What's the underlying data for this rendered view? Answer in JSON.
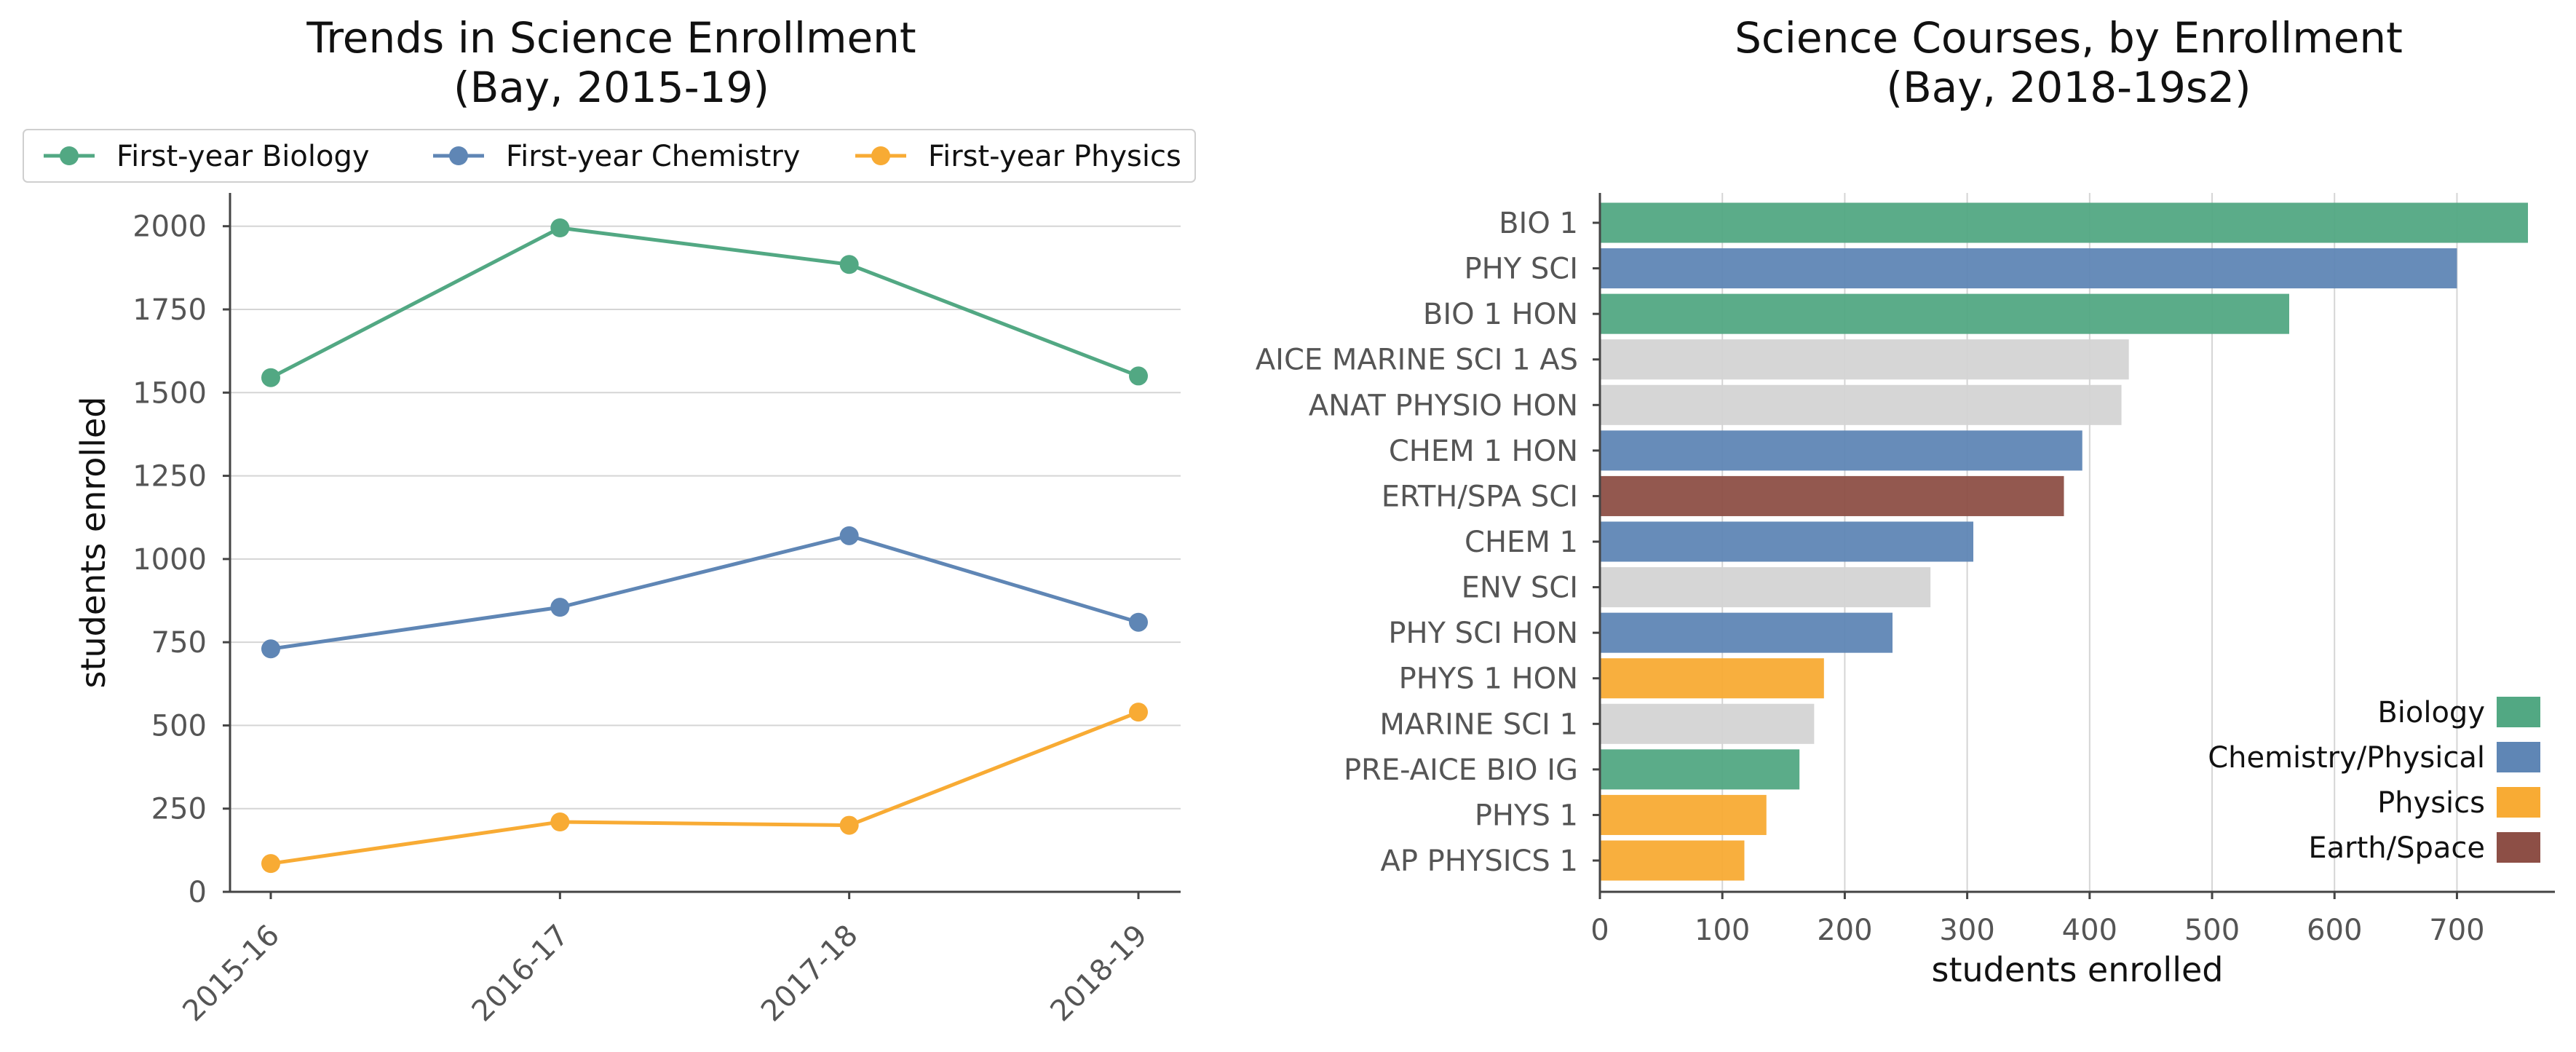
{
  "chart_data": [
    {
      "type": "line",
      "title": [
        "Trends in Science Enrollment",
        "(Bay, 2015-19)"
      ],
      "xlabel": "",
      "ylabel": "students enrolled",
      "categories": [
        "2015-16",
        "2016-17",
        "2017-18",
        "2018-19"
      ],
      "ylim": [
        0,
        2100
      ],
      "yticks": [
        0,
        250,
        500,
        750,
        1000,
        1250,
        1500,
        1750,
        2000
      ],
      "grid": "y",
      "legend_position": "top",
      "series": [
        {
          "name": "First-year Biology",
          "color": "#52a883",
          "values": [
            1545,
            1995,
            1885,
            1550
          ]
        },
        {
          "name": "First-year Chemistry",
          "color": "#5f86b5",
          "values": [
            730,
            855,
            1070,
            810
          ]
        },
        {
          "name": "First-year Physics",
          "color": "#f8ab34",
          "values": [
            85,
            210,
            200,
            540
          ]
        }
      ]
    },
    {
      "type": "bar",
      "orientation": "horizontal",
      "title": [
        "Science Courses, by Enrollment",
        "(Bay, 2018-19s2)"
      ],
      "xlabel": "students enrolled",
      "ylabel": "",
      "xlim": [
        0,
        780
      ],
      "xticks": [
        0,
        100,
        200,
        300,
        400,
        500,
        600,
        700
      ],
      "grid": "x",
      "legend_position": "lower right",
      "categories": [
        "BIO 1",
        "PHY SCI",
        "BIO 1 HON",
        "AICE MARINE SCI 1 AS",
        "ANAT PHYSIO HON",
        "CHEM 1 HON",
        "ERTH/SPA SCI",
        "CHEM 1",
        "ENV SCI",
        "PHY SCI HON",
        "PHYS 1 HON",
        "MARINE SCI 1",
        "PRE-AICE BIO IG",
        "PHYS 1",
        "AP PHYSICS 1"
      ],
      "values": [
        758,
        700,
        563,
        432,
        426,
        394,
        379,
        305,
        270,
        239,
        183,
        175,
        163,
        136,
        118
      ],
      "bar_groups": [
        "Biology",
        "Chemistry/Physical",
        "Biology",
        "Other",
        "Other",
        "Chemistry/Physical",
        "Earth/Space",
        "Chemistry/Physical",
        "Other",
        "Chemistry/Physical",
        "Physics",
        "Other",
        "Biology",
        "Physics",
        "Physics"
      ],
      "group_colors": {
        "Biology": "#52a883",
        "Chemistry/Physical": "#5f86b5",
        "Physics": "#f8ab34",
        "Earth/Space": "#8d4f46",
        "Other": "#d4d4d4"
      },
      "legend": [
        "Biology",
        "Chemistry/Physical",
        "Physics",
        "Earth/Space"
      ]
    }
  ]
}
